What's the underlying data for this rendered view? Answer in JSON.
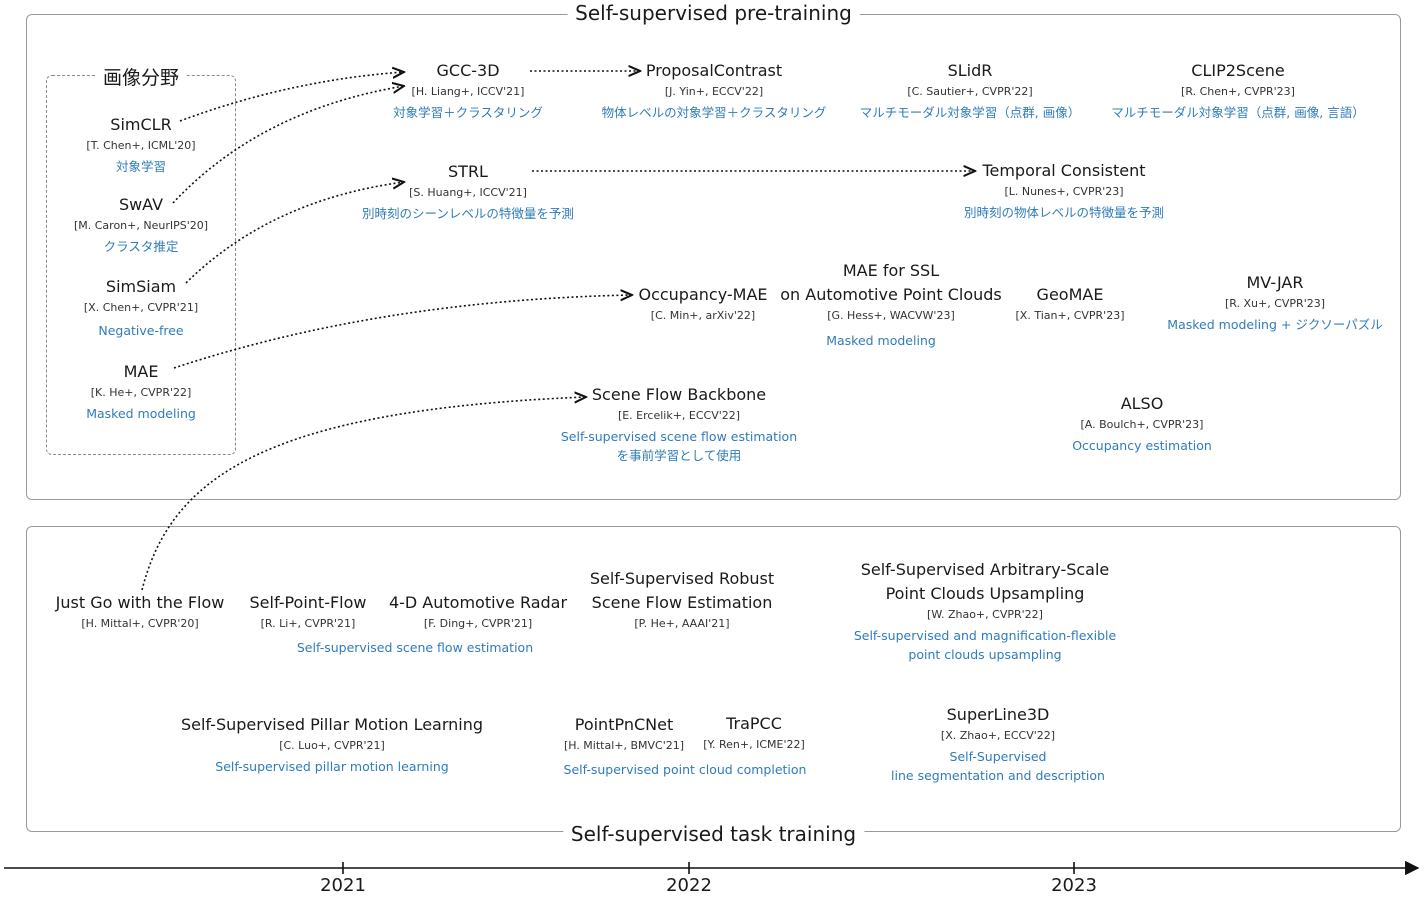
{
  "pretrain_title": "Self-supervised pre-training",
  "task_title": "Self-supervised task training",
  "image_domain": {
    "title": "画像分野",
    "items": [
      {
        "title": "SimCLR",
        "ref": "[T. Chen+, ICML'20]",
        "desc": "対象学習"
      },
      {
        "title": "SwAV",
        "ref": "[M. Caron+, NeurIPS'20]",
        "desc": "クラスタ推定"
      },
      {
        "title": "SimSiam",
        "ref": "[X. Chen+, CVPR'21]",
        "desc": "Negative-free"
      },
      {
        "title": "MAE",
        "ref": "[K. He+, CVPR'22]",
        "desc": "Masked modeling"
      }
    ]
  },
  "pretrain_items": [
    {
      "title": [
        "GCC-3D"
      ],
      "ref": "[H. Liang+, ICCV'21]",
      "desc": [
        "対象学習＋クラスタリング"
      ]
    },
    {
      "title": [
        "ProposalContrast"
      ],
      "ref": "[J. Yin+, ECCV'22]",
      "desc": [
        "物体レベルの対象学習＋クラスタリング"
      ]
    },
    {
      "title": [
        "SLidR"
      ],
      "ref": "[C. Sautier+, CVPR'22]",
      "desc": [
        "マルチモーダル対象学習（点群, 画像）"
      ]
    },
    {
      "title": [
        "CLIP2Scene"
      ],
      "ref": "[R. Chen+, CVPR'23]",
      "desc": [
        "マルチモーダル対象学習（点群, 画像, 言語）"
      ]
    },
    {
      "title": [
        "STRL"
      ],
      "ref": "[S. Huang+, ICCV'21]",
      "desc": [
        "別時刻のシーンレベルの特徴量を予測"
      ]
    },
    {
      "title": [
        "Temporal Consistent"
      ],
      "ref": "[L. Nunes+, CVPR'23]",
      "desc": [
        "別時刻の物体レベルの特徴量を予測"
      ]
    },
    {
      "title": [
        "Occupancy-MAE"
      ],
      "ref": "[C. Min+, arXiv'22]",
      "desc": []
    },
    {
      "title": [
        "MAE for SSL",
        "on Automotive Point Clouds"
      ],
      "ref": "[G. Hess+, WACVW'23]",
      "desc": [
        "Masked modeling"
      ]
    },
    {
      "title": [
        "GeoMAE"
      ],
      "ref": "[X. Tian+, CVPR'23]",
      "desc": []
    },
    {
      "title": [
        "MV-JAR"
      ],
      "ref": "[R. Xu+, CVPR'23]",
      "desc": [
        "Masked modeling + ジクソーパズル"
      ]
    },
    {
      "title": [
        "Scene Flow Backbone"
      ],
      "ref": "[E. Ercelik+, ECCV'22]",
      "desc": [
        "Self-supervised scene flow estimation",
        "を事前学習として使用"
      ]
    },
    {
      "title": [
        "ALSO"
      ],
      "ref": "[A. Boulch+, CVPR'23]",
      "desc": [
        "Occupancy estimation"
      ]
    }
  ],
  "task_items": [
    {
      "title": [
        "Just Go with the Flow"
      ],
      "ref": "[H. Mittal+, CVPR'20]",
      "desc": []
    },
    {
      "title": [
        "Self-Point-Flow"
      ],
      "ref": "[R. Li+, CVPR'21]",
      "desc": []
    },
    {
      "title": [
        "4-D Automotive Radar"
      ],
      "ref": "[F. Ding+, CVPR'21]",
      "desc": []
    },
    {
      "title": [
        "Self-Supervised Robust",
        "Scene Flow Estimation"
      ],
      "ref": "[P. He+, AAAI'21]",
      "desc": []
    },
    {
      "title": [
        "Self-Supervised Arbitrary-Scale",
        "Point Clouds Upsampling"
      ],
      "ref": "[W. Zhao+, CVPR'22]",
      "desc": [
        "Self-supervised and magnification-flexible",
        "point clouds upsampling"
      ]
    },
    {
      "title": [
        "Self-Supervised Pillar Motion Learning"
      ],
      "ref": "[C. Luo+, CVPR'21]",
      "desc": [
        "Self-supervised pillar motion learning"
      ]
    },
    {
      "title": [
        "PointPnCNet"
      ],
      "ref": "[H. Mittal+, BMVC'21]",
      "desc": []
    },
    {
      "title": [
        "TraPCC"
      ],
      "ref": "[Y. Ren+, ICME'22]",
      "desc": []
    },
    {
      "title": [
        "SuperLine3D"
      ],
      "ref": "[X. Zhao+, ECCV'22]",
      "desc": [
        "Self-Supervised",
        "line segmentation and description"
      ]
    }
  ],
  "shared_labels": {
    "scene_flow": "Self-supervised scene flow estimation",
    "completion": "Self-supervised point cloud completion"
  },
  "axis_years": [
    "2021",
    "2022",
    "2023"
  ],
  "colors": {
    "desc": "#2f7cba",
    "border": "#9a9a9a",
    "text": "#1a1a1a"
  }
}
